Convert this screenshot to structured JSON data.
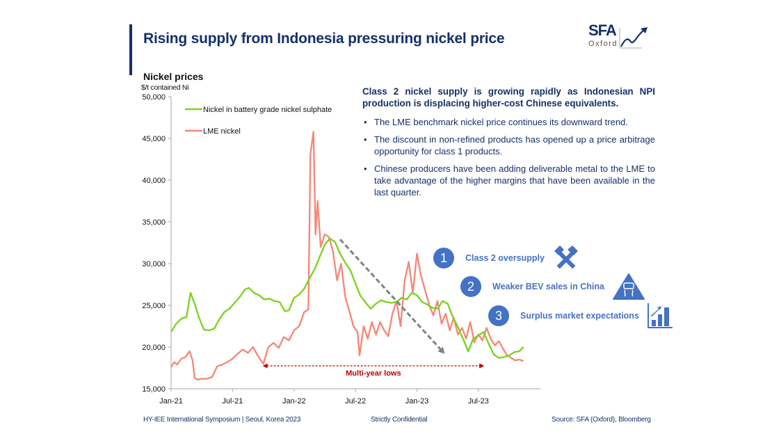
{
  "page": {
    "title": "Rising supply from Indonesia pressuring nickel price",
    "logo": {
      "text_main": "SFA",
      "text_sub": "Oxford",
      "icon": "rising-arrow-icon"
    },
    "chart_title": "Nickel prices",
    "chart_unit": "$/t contained Ni"
  },
  "panel": {
    "headline": "Class 2 nickel supply is growing rapidly as Indonesian NPI production is displacing higher-cost Chinese equivalents.",
    "bullet_symbol": "•",
    "bullets": [
      "The LME benchmark nickel price continues its downward trend.",
      "The discount in non-refined products has opened up a price arbitrage opportunity for class 1 products.",
      "Chinese producers have been adding deliverable metal to the LME to take advantage of the higher margins that have been available in the last quarter."
    ]
  },
  "factors": [
    {
      "num": "1",
      "label": "Class 2 oversupply",
      "icon": "hammers-icon"
    },
    {
      "num": "2",
      "label": "Weaker BEV sales in China",
      "icon": "slippery-road-warning-icon"
    },
    {
      "num": "3",
      "label": "Surplus market expectations",
      "icon": "bar-chart-growth-icon"
    }
  ],
  "footer": {
    "left": "HY-IEE International Symposium | Seoul, Korea 2023",
    "center": "Strictly Confidential",
    "right": "Source: SFA (Oxford), Bloomberg"
  },
  "colors": {
    "navy": "#14306a",
    "accent_blue": "#4472c4",
    "green_series": "#7ed321",
    "lme_series": "#f4897b",
    "annotation_red": "#c00000",
    "trend_gray": "#808080"
  },
  "chart_data": {
    "type": "line",
    "title": "Nickel prices",
    "ylabel": "$/t contained Ni",
    "xlabel": "",
    "ylim": [
      15000,
      50000
    ],
    "yticks": [
      15000,
      20000,
      25000,
      30000,
      35000,
      40000,
      45000,
      50000
    ],
    "ytick_labels": [
      "15,000",
      "20,000",
      "25,000",
      "30,000",
      "35,000",
      "40,000",
      "45,000",
      "50,000"
    ],
    "xlim_months_from_jan21": [
      0,
      36
    ],
    "xticks_months_from_jan21": [
      0,
      6,
      12,
      18,
      24,
      30
    ],
    "xtick_labels": [
      "Jan-21",
      "Jul-21",
      "Jan-22",
      "Jul-22",
      "Jan-23",
      "Jul-23"
    ],
    "legend_position": "top-left",
    "grid": false,
    "series": [
      {
        "name": "Nickel in battery grade nickel sulphate",
        "color": "#7ed321",
        "x": [
          0,
          0.5,
          1,
          1.5,
          1.9,
          2.3,
          2.7,
          3.2,
          3.7,
          4.2,
          4.7,
          5.2,
          5.7,
          6.2,
          6.7,
          7.2,
          7.6,
          8.1,
          8.6,
          9.1,
          9.6,
          10.1,
          10.6,
          11.1,
          11.5,
          12,
          12.5,
          13,
          13.5,
          14,
          14.5,
          15,
          15.5,
          16,
          16.5,
          17,
          17.5,
          18,
          18.5,
          19,
          19.5,
          20,
          20.5,
          21,
          21.5,
          22,
          22.5,
          23,
          23.5,
          24,
          24.5,
          25,
          25.5,
          26,
          26.5,
          27,
          27.5,
          28,
          28.5,
          29,
          29.5,
          30,
          30.5,
          31,
          31.5,
          32,
          32.5,
          33,
          33.5,
          34,
          34.4
        ],
        "values": [
          21800,
          22800,
          23400,
          23600,
          26500,
          25200,
          23600,
          22100,
          22000,
          22200,
          23300,
          24200,
          24600,
          25300,
          26000,
          26900,
          27100,
          26500,
          26200,
          25700,
          25800,
          25500,
          25400,
          24300,
          24400,
          25900,
          26300,
          27000,
          28200,
          29300,
          30800,
          32300,
          33000,
          32600,
          31200,
          30100,
          29200,
          27600,
          26100,
          25300,
          24600,
          25200,
          25600,
          25400,
          25300,
          25400,
          25900,
          25700,
          26500,
          26200,
          25400,
          25100,
          24700,
          24600,
          25500,
          25200,
          23600,
          22400,
          21000,
          19500,
          21000,
          21400,
          21800,
          20400,
          19100,
          18700,
          18800,
          19000,
          19400,
          19500,
          20000
        ]
      },
      {
        "name": "LME nickel",
        "color": "#f4897b",
        "x": [
          0,
          0.3,
          0.6,
          1,
          1.4,
          1.8,
          2.1,
          2.3,
          2.6,
          3,
          3.5,
          4,
          4.5,
          5,
          5.5,
          6,
          6.5,
          7,
          7.5,
          8,
          8.5,
          9,
          9.5,
          10,
          10.5,
          11,
          11.5,
          12,
          12.5,
          13,
          13.4,
          13.6,
          13.9,
          14.1,
          14.3,
          14.6,
          15,
          15.4,
          15.8,
          16.2,
          16.6,
          17,
          17.4,
          17.8,
          18.2,
          18.4,
          18.8,
          19.2,
          19.6,
          20,
          20.4,
          20.8,
          21.2,
          21.6,
          22,
          22.4,
          22.8,
          23.2,
          23.6,
          24,
          24.4,
          24.8,
          25.2,
          25.6,
          26,
          26.4,
          26.8,
          27.2,
          27.6,
          28,
          28.4,
          28.8,
          29.2,
          29.6,
          30,
          30.4,
          30.8,
          31.2,
          31.6,
          32,
          32.4,
          32.8,
          33.2,
          33.6,
          34,
          34.4
        ],
        "values": [
          17600,
          18200,
          17900,
          18600,
          18800,
          19500,
          18400,
          16300,
          16100,
          16200,
          16200,
          16400,
          17700,
          17900,
          18200,
          18600,
          19200,
          19700,
          19300,
          20000,
          18900,
          18000,
          20000,
          20500,
          19900,
          21200,
          20800,
          22000,
          22500,
          24200,
          24500,
          43100,
          45800,
          33500,
          37500,
          32000,
          33500,
          33200,
          31500,
          28000,
          30000,
          26000,
          24300,
          22500,
          21800,
          19000,
          22500,
          21000,
          23000,
          21500,
          23000,
          22000,
          21300,
          24000,
          25500,
          22500,
          28000,
          30200,
          26500,
          31200,
          28500,
          26800,
          25000,
          23800,
          25500,
          22800,
          24000,
          22000,
          23500,
          21500,
          22300,
          21000,
          23000,
          20600,
          21500,
          20800,
          22300,
          21000,
          20200,
          20700,
          19800,
          19000,
          18700,
          18400,
          18500,
          18300
        ]
      }
    ],
    "annotations": [
      {
        "type": "double-arrow",
        "label": "Multi-year lows",
        "from_month": 9,
        "to_month": 30.7,
        "value": 18000,
        "color": "#c00000"
      },
      {
        "type": "trend-arrow",
        "label": "",
        "from": [
          16.5,
          32900
        ],
        "to": [
          26.7,
          19200
        ],
        "color": "#808080"
      }
    ]
  }
}
